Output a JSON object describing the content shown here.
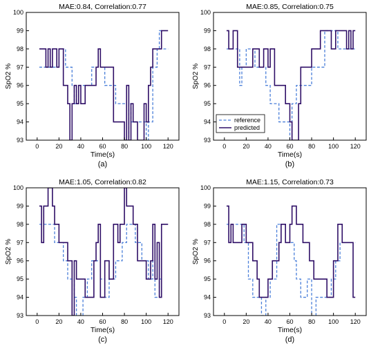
{
  "figure": {
    "panels": [
      {
        "label": "(a)",
        "title": "MAE:0.84, Correlation:0.77"
      },
      {
        "label": "(b)",
        "title": "MAE:0.85, Correlation:0.75"
      },
      {
        "label": "(c)",
        "title": "MAE:1.05, Correlation:0.82"
      },
      {
        "label": "(d)",
        "title": "MAE:1.15, Correlation:0.73"
      }
    ],
    "xlabel": "Time(s)",
    "ylabel": "SpO2 %",
    "legend": {
      "reference": "reference",
      "predicted": "predicted"
    },
    "colors": {
      "reference": "#4a7fd9",
      "predicted": "#2e0e66"
    }
  },
  "chart_data": [
    {
      "type": "line",
      "title": "MAE:0.84, Correlation:0.77",
      "xlabel": "Time(s)",
      "ylabel": "SpO2 %",
      "xlim": [
        -10,
        130
      ],
      "ylim": [
        93,
        100
      ],
      "xticks": [
        0,
        20,
        40,
        60,
        80,
        100,
        120
      ],
      "yticks": [
        93,
        94,
        95,
        96,
        97,
        98,
        99,
        100
      ],
      "grid": false,
      "series": [
        {
          "name": "reference",
          "style": "dashed",
          "x": [
            2,
            20,
            20,
            26,
            26,
            32,
            32,
            34,
            34,
            36,
            36,
            50,
            50,
            62,
            62,
            72,
            72,
            82,
            82,
            84,
            84,
            86,
            86,
            100,
            100,
            102,
            102,
            106,
            106,
            110,
            110,
            112,
            112,
            114,
            114,
            120
          ],
          "y": [
            97,
            97,
            98,
            98,
            97,
            97,
            96,
            96,
            95,
            95,
            96,
            96,
            97,
            97,
            96,
            96,
            95,
            95,
            93,
            93,
            95,
            95,
            94,
            94,
            93,
            93,
            94,
            94,
            97,
            97,
            98,
            98,
            99,
            99,
            98,
            98
          ]
        },
        {
          "name": "predicted",
          "style": "solid",
          "x": [
            2,
            8,
            8,
            10,
            10,
            12,
            12,
            14,
            14,
            18,
            18,
            20,
            20,
            24,
            24,
            28,
            28,
            30,
            30,
            32,
            32,
            34,
            34,
            36,
            36,
            38,
            38,
            40,
            40,
            44,
            44,
            54,
            54,
            56,
            56,
            58,
            58,
            70,
            70,
            80,
            80,
            82,
            82,
            84,
            84,
            86,
            86,
            88,
            88,
            92,
            92,
            98,
            98,
            100,
            100,
            102,
            102,
            104,
            104,
            106,
            106,
            114,
            114,
            120
          ],
          "y": [
            98,
            98,
            97,
            97,
            98,
            98,
            97,
            97,
            98,
            98,
            97,
            97,
            98,
            98,
            96,
            96,
            95,
            95,
            93,
            93,
            95,
            95,
            96,
            96,
            95,
            95,
            96,
            96,
            95,
            95,
            96,
            96,
            97,
            97,
            98,
            98,
            97,
            97,
            94,
            94,
            93,
            93,
            96,
            96,
            93,
            93,
            95,
            95,
            94,
            94,
            93,
            93,
            95,
            95,
            94,
            94,
            96,
            96,
            97,
            97,
            98,
            98,
            99,
            99
          ]
        }
      ]
    },
    {
      "type": "line",
      "title": "MAE:0.85, Correlation:0.75",
      "xlabel": "Time(s)",
      "ylabel": "SpO2 %",
      "xlim": [
        -10,
        130
      ],
      "ylim": [
        93,
        100
      ],
      "xticks": [
        0,
        20,
        40,
        60,
        80,
        100,
        120
      ],
      "yticks": [
        93,
        94,
        95,
        96,
        97,
        98,
        99,
        100
      ],
      "grid": false,
      "legend": {
        "entries": [
          "reference",
          "predicted"
        ],
        "placement": "lower-left"
      },
      "series": [
        {
          "name": "reference",
          "style": "dashed",
          "x": [
            2,
            14,
            14,
            16,
            16,
            20,
            20,
            28,
            28,
            38,
            38,
            42,
            42,
            50,
            50,
            60,
            60,
            62,
            62,
            66,
            66,
            70,
            70,
            80,
            80,
            92,
            92,
            104,
            104,
            120
          ],
          "y": [
            98,
            98,
            96,
            96,
            97,
            97,
            98,
            98,
            97,
            97,
            96,
            96,
            95,
            95,
            94,
            94,
            93,
            93,
            95,
            95,
            96,
            96,
            96,
            96,
            97,
            97,
            99,
            99,
            98,
            98
          ]
        },
        {
          "name": "predicted",
          "style": "solid",
          "x": [
            2,
            4,
            4,
            8,
            8,
            12,
            12,
            16,
            16,
            26,
            26,
            32,
            32,
            36,
            36,
            40,
            40,
            42,
            42,
            46,
            46,
            56,
            56,
            60,
            60,
            62,
            62,
            68,
            68,
            70,
            70,
            80,
            80,
            88,
            88,
            98,
            98,
            102,
            102,
            112,
            112,
            114,
            114,
            116,
            116,
            118,
            118,
            120
          ],
          "y": [
            99,
            99,
            98,
            98,
            99,
            99,
            97,
            97,
            97,
            97,
            98,
            98,
            97,
            97,
            98,
            98,
            97,
            97,
            98,
            98,
            96,
            96,
            95,
            95,
            94,
            94,
            93,
            93,
            95,
            95,
            97,
            97,
            98,
            98,
            99,
            99,
            98,
            98,
            99,
            99,
            98,
            98,
            99,
            99,
            98,
            98,
            99,
            99
          ]
        }
      ]
    },
    {
      "type": "line",
      "title": "MAE:1.05, Correlation:0.82",
      "xlabel": "Time(s)",
      "ylabel": "SpO2 %",
      "xlim": [
        -10,
        130
      ],
      "ylim": [
        93,
        100
      ],
      "xticks": [
        0,
        20,
        40,
        60,
        80,
        100,
        120
      ],
      "yticks": [
        93,
        94,
        95,
        96,
        97,
        98,
        99,
        100
      ],
      "grid": false,
      "series": [
        {
          "name": "reference",
          "style": "dashed",
          "x": [
            2,
            16,
            16,
            24,
            24,
            28,
            28,
            34,
            34,
            36,
            36,
            42,
            42,
            46,
            46,
            50,
            50,
            58,
            58,
            62,
            62,
            66,
            66,
            72,
            72,
            78,
            78,
            82,
            82,
            90,
            90,
            96,
            96,
            102,
            102,
            106,
            106,
            108,
            108,
            112,
            112,
            114,
            114,
            120
          ],
          "y": [
            98,
            98,
            97,
            97,
            96,
            96,
            95,
            95,
            94,
            94,
            93,
            93,
            94,
            94,
            95,
            95,
            96,
            96,
            95,
            95,
            94,
            94,
            95,
            95,
            96,
            96,
            97,
            97,
            98,
            98,
            97,
            97,
            96,
            96,
            95,
            95,
            96,
            96,
            94,
            94,
            95,
            95,
            98,
            98
          ]
        },
        {
          "name": "predicted",
          "style": "solid",
          "x": [
            2,
            4,
            4,
            6,
            6,
            10,
            10,
            14,
            14,
            16,
            16,
            20,
            20,
            28,
            28,
            32,
            32,
            34,
            34,
            36,
            36,
            38,
            38,
            44,
            44,
            52,
            52,
            54,
            54,
            56,
            56,
            58,
            58,
            62,
            62,
            66,
            66,
            70,
            70,
            74,
            74,
            76,
            76,
            80,
            80,
            82,
            82,
            88,
            88,
            92,
            92,
            100,
            100,
            104,
            104,
            106,
            106,
            108,
            108,
            110,
            110,
            112,
            112,
            114,
            114,
            120
          ],
          "y": [
            99,
            99,
            97,
            97,
            99,
            99,
            100,
            100,
            99,
            99,
            98,
            98,
            97,
            97,
            96,
            96,
            93,
            93,
            96,
            96,
            95,
            95,
            95,
            95,
            94,
            94,
            96,
            96,
            97,
            97,
            98,
            98,
            94,
            94,
            96,
            96,
            95,
            95,
            98,
            98,
            97,
            97,
            98,
            98,
            100,
            100,
            99,
            99,
            98,
            98,
            96,
            96,
            95,
            95,
            96,
            96,
            98,
            98,
            95,
            95,
            97,
            97,
            94,
            94,
            98,
            98
          ]
        }
      ]
    },
    {
      "type": "line",
      "title": "MAE:1.15, Correlation:0.73",
      "xlabel": "Time(s)",
      "ylabel": "SpO2 %",
      "xlim": [
        -10,
        130
      ],
      "ylim": [
        93,
        100
      ],
      "xticks": [
        0,
        20,
        40,
        60,
        80,
        100,
        120
      ],
      "yticks": [
        93,
        94,
        95,
        96,
        97,
        98,
        99,
        100
      ],
      "grid": false,
      "series": [
        {
          "name": "reference",
          "style": "dashed",
          "x": [
            2,
            18,
            18,
            22,
            22,
            26,
            26,
            34,
            34,
            38,
            38,
            42,
            42,
            48,
            48,
            56,
            56,
            64,
            64,
            66,
            66,
            70,
            70,
            76,
            76,
            80,
            80,
            84,
            84,
            98,
            98,
            102,
            102,
            106,
            106,
            110,
            110,
            120
          ],
          "y": [
            98,
            98,
            97,
            97,
            95,
            95,
            94,
            94,
            93,
            93,
            94,
            94,
            95,
            95,
            98,
            98,
            97,
            97,
            96,
            96,
            95,
            95,
            94,
            94,
            95,
            95,
            93,
            93,
            94,
            94,
            95,
            95,
            96,
            96,
            97,
            97,
            97,
            97
          ]
        },
        {
          "name": "predicted",
          "style": "solid",
          "x": [
            2,
            4,
            4,
            6,
            6,
            8,
            8,
            16,
            16,
            20,
            20,
            26,
            26,
            30,
            30,
            32,
            32,
            36,
            36,
            40,
            40,
            44,
            44,
            50,
            50,
            52,
            52,
            56,
            56,
            60,
            60,
            62,
            62,
            66,
            66,
            72,
            72,
            78,
            78,
            82,
            82,
            88,
            88,
            94,
            94,
            100,
            100,
            104,
            104,
            108,
            108,
            112,
            112,
            118,
            118,
            120
          ],
          "y": [
            99,
            99,
            97,
            97,
            98,
            98,
            97,
            97,
            98,
            98,
            97,
            97,
            96,
            96,
            95,
            95,
            94,
            94,
            94,
            94,
            95,
            95,
            96,
            96,
            97,
            97,
            98,
            98,
            97,
            97,
            98,
            98,
            99,
            99,
            98,
            98,
            97,
            97,
            96,
            96,
            95,
            95,
            95,
            95,
            94,
            94,
            96,
            96,
            98,
            98,
            97,
            97,
            97,
            97,
            94,
            94
          ]
        }
      ]
    }
  ]
}
